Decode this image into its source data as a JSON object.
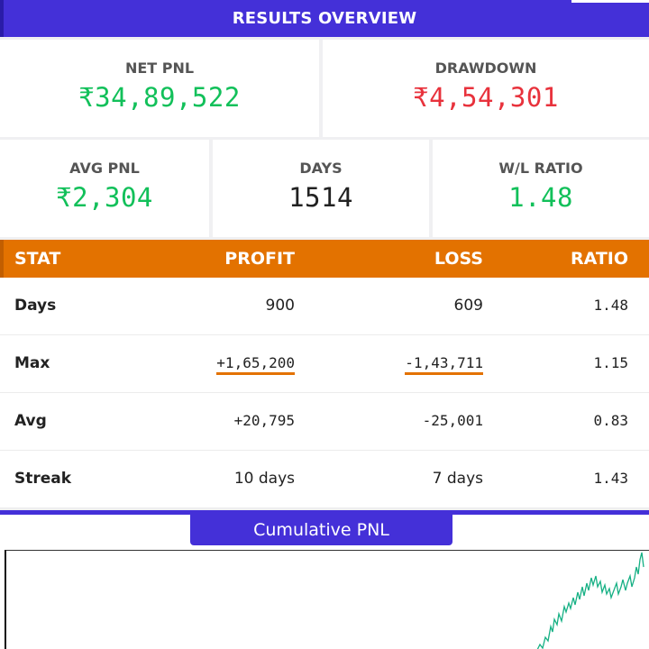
{
  "header": {
    "title": "RESULTS OVERVIEW"
  },
  "summary": {
    "net_pnl": {
      "label": "NET PNL",
      "value": "₹34,89,522"
    },
    "drawdown": {
      "label": "DRAWDOWN",
      "value": "₹4,54,301"
    },
    "avg_pnl": {
      "label": "AVG PNL",
      "value": "₹2,304"
    },
    "days": {
      "label": "DAYS",
      "value": "1514"
    },
    "wl_ratio": {
      "label": "W/L RATIO",
      "value": "1.48"
    }
  },
  "table": {
    "headers": [
      "STAT",
      "PROFIT",
      "LOSS",
      "RATIO"
    ],
    "rows": [
      {
        "stat": "Days",
        "profit": "900",
        "loss": "609",
        "ratio": "1.48"
      },
      {
        "stat": "Max",
        "profit": "+1,65,200",
        "loss": "-1,43,711",
        "ratio": "1.15"
      },
      {
        "stat": "Avg",
        "profit": "+20,795",
        "loss": "-25,001",
        "ratio": "0.83"
      },
      {
        "stat": "Streak",
        "profit": "10 days",
        "loss": "7 days",
        "ratio": "1.43"
      }
    ]
  },
  "chart": {
    "title": "Cumulative PNL"
  },
  "colors": {
    "accent": "#4430d8",
    "table_header": "#e37200",
    "positive": "#12c05a",
    "negative": "#e8323c"
  }
}
